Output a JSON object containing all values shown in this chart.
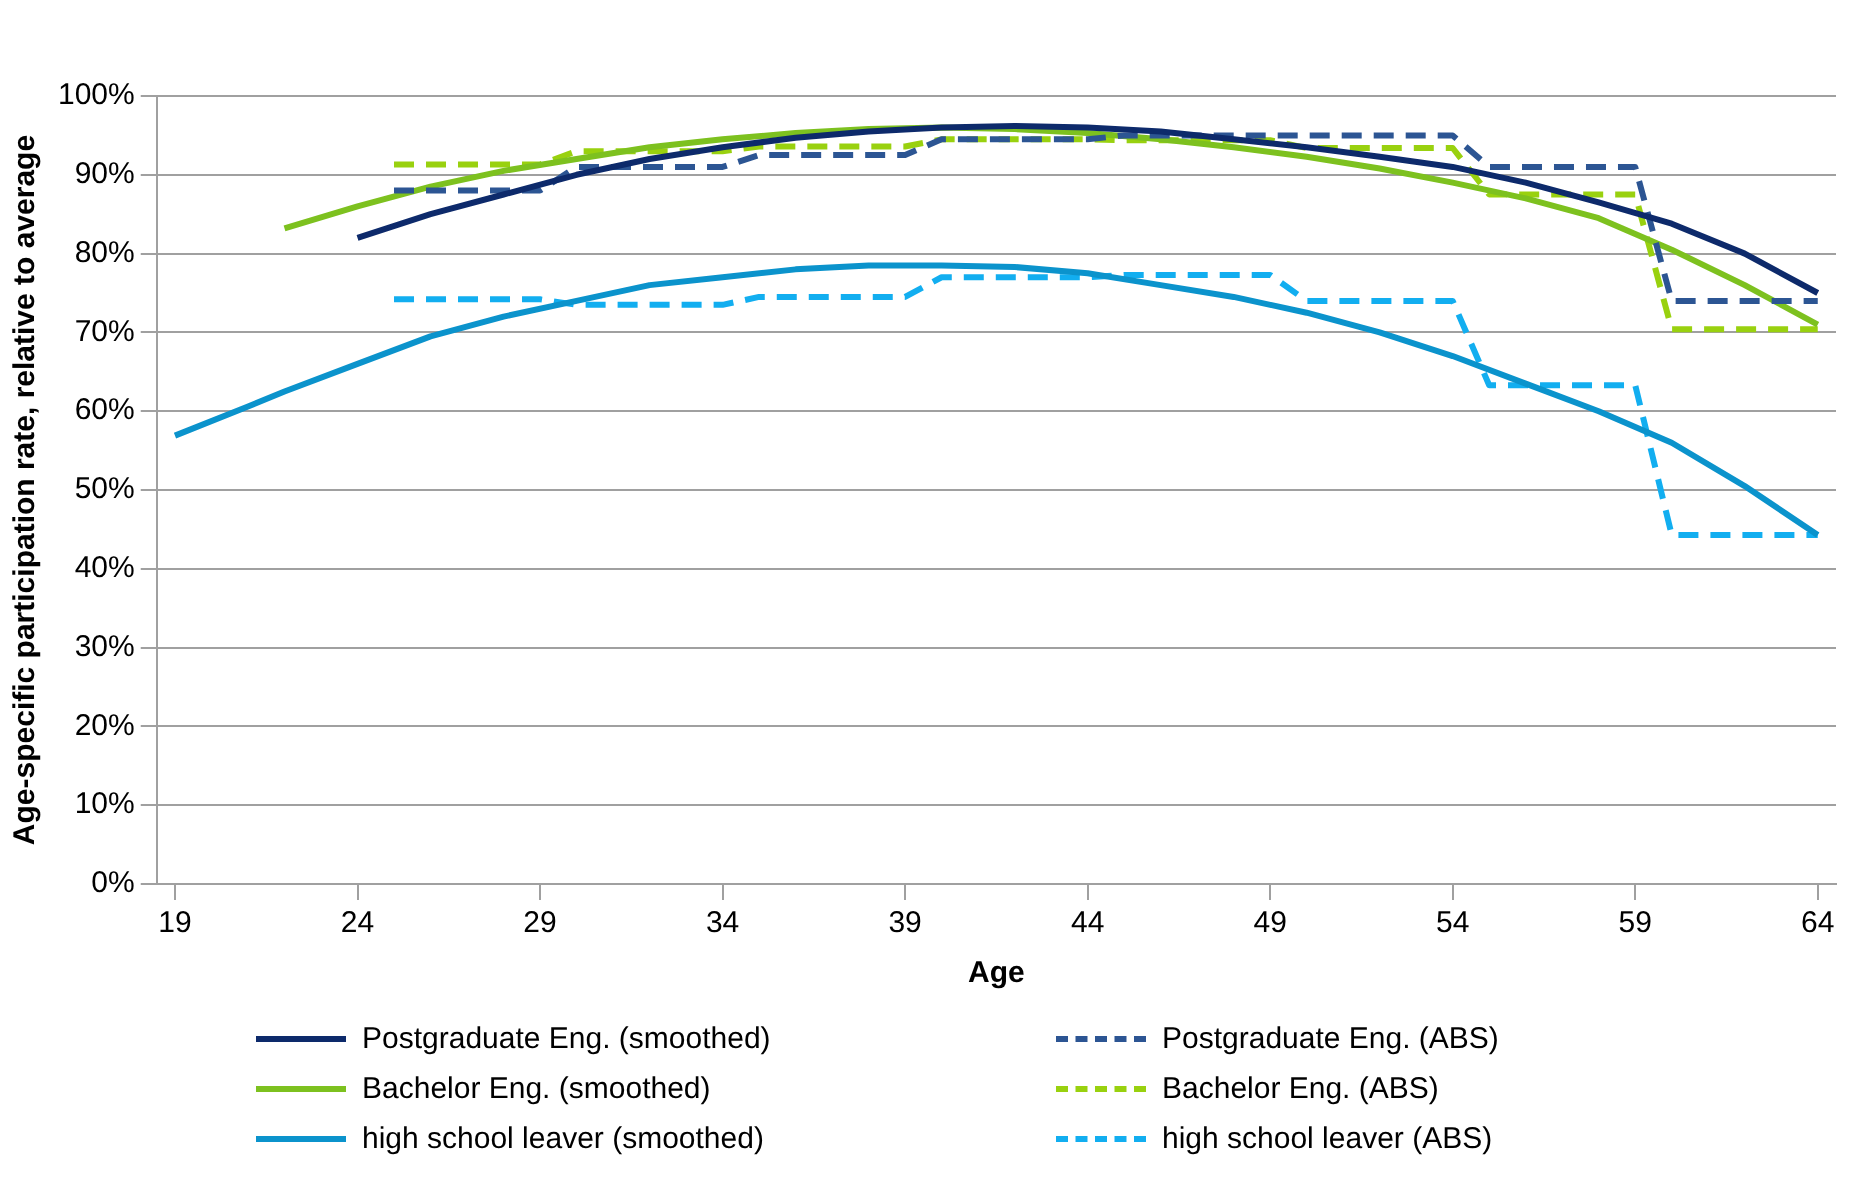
{
  "chart_data": {
    "type": "line",
    "xlabel": "Age",
    "ylabel": "Age-specific participation rate, relative to average",
    "xlim": [
      18.5,
      64.5
    ],
    "xticks": [
      19,
      24,
      29,
      34,
      39,
      44,
      49,
      54,
      59,
      64
    ],
    "ylim": [
      0,
      100
    ],
    "yticks": [
      {
        "value": 0,
        "label": "0%"
      },
      {
        "value": 10,
        "label": "10%"
      },
      {
        "value": 20,
        "label": "20%"
      },
      {
        "value": 30,
        "label": "30%"
      },
      {
        "value": 40,
        "label": "40%"
      },
      {
        "value": 50,
        "label": "50%"
      },
      {
        "value": 60,
        "label": "60%"
      },
      {
        "value": 70,
        "label": "70%"
      },
      {
        "value": 80,
        "label": "80%"
      },
      {
        "value": 90,
        "label": "90%"
      },
      {
        "value": 100,
        "label": "100%"
      }
    ],
    "grid": "y",
    "legend": "bottom",
    "marker": "none",
    "series": [
      {
        "name": "Postgraduate Eng. (smoothed)",
        "color": "#0d2a6b",
        "line_style": "solid",
        "x": [
          24,
          26,
          28,
          30,
          32,
          34,
          36,
          38,
          40,
          42,
          44,
          46,
          48,
          50,
          52,
          54,
          56,
          58,
          60,
          62,
          64
        ],
        "values": [
          82,
          85,
          87.5,
          90,
          92,
          93.5,
          94.7,
          95.5,
          96,
          96.2,
          96,
          95.5,
          94.5,
          93.5,
          92.3,
          91,
          89,
          86.5,
          83.8,
          80,
          75
        ]
      },
      {
        "name": "Postgraduate Eng. (ABS)",
        "color": "#2c5593",
        "line_style": "dashed",
        "x": [
          25,
          26,
          27,
          28,
          29,
          30,
          31,
          32,
          33,
          34,
          35,
          36,
          37,
          38,
          39,
          40,
          41,
          42,
          43,
          44,
          45,
          46,
          47,
          48,
          49,
          50,
          51,
          52,
          53,
          54,
          55,
          56,
          57,
          58,
          59,
          60,
          61,
          62,
          63,
          64
        ],
        "values": [
          88,
          88,
          88,
          88,
          88,
          91,
          91,
          91,
          91,
          91,
          92.5,
          92.5,
          92.5,
          92.5,
          92.5,
          94.5,
          94.5,
          94.5,
          94.5,
          94.5,
          95,
          95,
          95,
          95,
          95,
          95,
          95,
          95,
          95,
          95,
          91,
          91,
          91,
          91,
          91,
          74,
          74,
          74,
          74,
          74
        ]
      },
      {
        "name": "Bachelor Eng. (smoothed)",
        "color": "#7dc11f",
        "line_style": "solid",
        "x": [
          22,
          24,
          26,
          28,
          30,
          32,
          34,
          36,
          38,
          40,
          42,
          44,
          46,
          48,
          50,
          52,
          54,
          56,
          58,
          60,
          62,
          64
        ],
        "values": [
          83.2,
          86,
          88.5,
          90.5,
          92,
          93.5,
          94.5,
          95.3,
          95.8,
          96,
          95.8,
          95.3,
          94.5,
          93.5,
          92.3,
          90.8,
          89,
          87,
          84.5,
          80.5,
          76,
          71
        ]
      },
      {
        "name": "Bachelor Eng. (ABS)",
        "color": "#99d10f",
        "line_style": "dashed",
        "x": [
          25,
          26,
          27,
          28,
          29,
          30,
          31,
          32,
          33,
          34,
          35,
          36,
          37,
          38,
          39,
          40,
          41,
          42,
          43,
          44,
          45,
          46,
          47,
          48,
          49,
          50,
          51,
          52,
          53,
          54,
          55,
          56,
          57,
          58,
          59,
          60,
          61,
          62,
          63,
          64
        ],
        "values": [
          91.3,
          91.3,
          91.3,
          91.3,
          91.3,
          93,
          93,
          93,
          93,
          93,
          93.6,
          93.6,
          93.6,
          93.6,
          93.6,
          94.5,
          94.5,
          94.5,
          94.5,
          94.5,
          94.4,
          94.4,
          94.4,
          94.4,
          94.4,
          93.4,
          93.4,
          93.4,
          93.4,
          93.4,
          87.5,
          87.5,
          87.5,
          87.5,
          87.5,
          70.4,
          70.4,
          70.4,
          70.4,
          70.4
        ]
      },
      {
        "name": "high school leaver (smoothed)",
        "color": "#0b93cc",
        "line_style": "solid",
        "x": [
          19,
          21,
          22,
          24,
          26,
          28,
          30,
          32,
          34,
          36,
          38,
          40,
          42,
          44,
          46,
          48,
          50,
          52,
          54,
          56,
          58,
          60,
          62,
          64
        ],
        "values": [
          56.9,
          60.6,
          62.5,
          66,
          69.5,
          72,
          74,
          76,
          77,
          78,
          78.5,
          78.5,
          78.3,
          77.5,
          76,
          74.5,
          72.5,
          70,
          67,
          63.5,
          60,
          56,
          50.5,
          44.3
        ]
      },
      {
        "name": "high school leaver (ABS)",
        "color": "#12aef0",
        "line_style": "dashed",
        "x": [
          25,
          26,
          27,
          28,
          29,
          30,
          31,
          32,
          33,
          34,
          35,
          36,
          37,
          38,
          39,
          40,
          41,
          42,
          43,
          44,
          45,
          46,
          47,
          48,
          49,
          50,
          51,
          52,
          53,
          54,
          55,
          56,
          57,
          58,
          59,
          60,
          61,
          62,
          63,
          64
        ],
        "values": [
          74.2,
          74.2,
          74.2,
          74.2,
          74.2,
          73.5,
          73.5,
          73.5,
          73.5,
          73.5,
          74.5,
          74.5,
          74.5,
          74.5,
          74.5,
          77,
          77,
          77,
          77,
          77,
          77.3,
          77.3,
          77.3,
          77.3,
          77.3,
          74,
          74,
          74,
          74,
          74,
          63.3,
          63.3,
          63.3,
          63.3,
          63.3,
          44.3,
          44.3,
          44.3,
          44.3,
          44.3
        ]
      }
    ]
  }
}
